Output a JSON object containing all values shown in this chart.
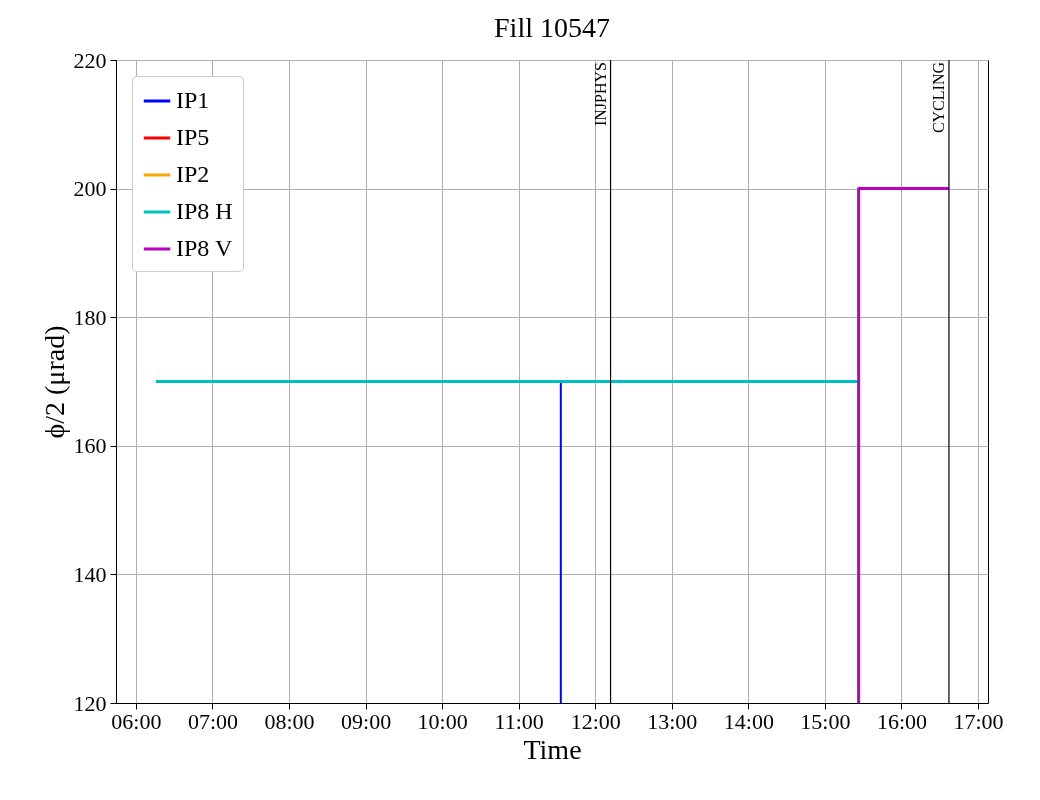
{
  "chart_data": {
    "type": "line",
    "title": "Fill 10547",
    "xlabel": "Time",
    "ylabel": "ϕ/2 (μrad)",
    "xlim": [
      5.74,
      17.13
    ],
    "xticks": [
      {
        "value": 6,
        "label": "06:00"
      },
      {
        "value": 7,
        "label": "07:00"
      },
      {
        "value": 8,
        "label": "08:00"
      },
      {
        "value": 9,
        "label": "09:00"
      },
      {
        "value": 10,
        "label": "10:00"
      },
      {
        "value": 11,
        "label": "11:00"
      },
      {
        "value": 12,
        "label": "12:00"
      },
      {
        "value": 13,
        "label": "13:00"
      },
      {
        "value": 14,
        "label": "14:00"
      },
      {
        "value": 15,
        "label": "15:00"
      },
      {
        "value": 16,
        "label": "16:00"
      },
      {
        "value": 17,
        "label": "17:00"
      }
    ],
    "ylim": [
      120,
      220
    ],
    "yticks": [
      120,
      140,
      160,
      180,
      200,
      220
    ],
    "series": [
      {
        "name": "IP1",
        "color": "#0000ff",
        "x": [
          11.55,
          11.55
        ],
        "values": [
          170,
          120
        ]
      },
      {
        "name": "IP5",
        "color": "#ff0000"
      },
      {
        "name": "IP2",
        "color": "#ffa500"
      },
      {
        "name": "IP8 H",
        "color": "#00bfbf",
        "x": [
          6.26,
          15.43
        ],
        "values": [
          170,
          170
        ]
      },
      {
        "name": "IP8 V",
        "color": "#bf00bf",
        "x": [
          15.44,
          15.44,
          16.62
        ],
        "values": [
          120,
          200,
          200
        ]
      }
    ],
    "ref_lines": [
      {
        "axis": "x",
        "value": 12.2,
        "label": "INJPHYS",
        "color": "#000000"
      },
      {
        "axis": "x",
        "value": 16.62,
        "label": "CYCLING",
        "color": "#000000"
      }
    ],
    "grid": true,
    "legend": "top left",
    "line_style": "solid"
  }
}
